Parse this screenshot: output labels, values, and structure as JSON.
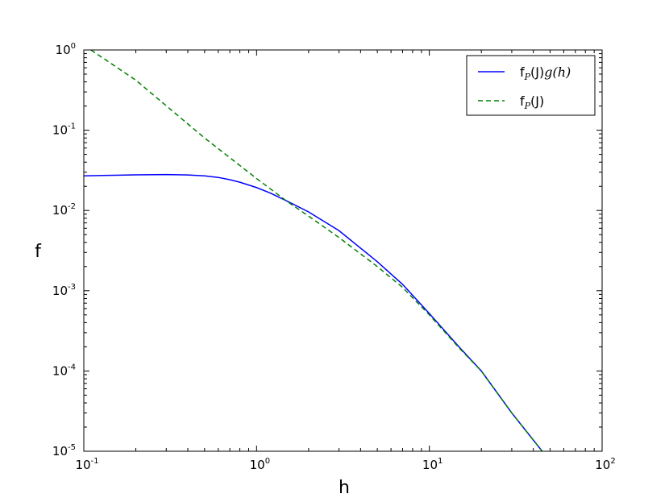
{
  "chart_data": {
    "type": "line",
    "xlabel": "h",
    "ylabel": "f",
    "xscale": "log",
    "yscale": "log",
    "xlim": [
      0.1,
      100
    ],
    "ylim": [
      1e-05,
      1
    ],
    "grid": false,
    "legend_position": "top-right",
    "x_ticks": [
      {
        "base": "10",
        "exp": "-1",
        "value": 0.1
      },
      {
        "base": "10",
        "exp": "0",
        "value": 1
      },
      {
        "base": "10",
        "exp": "1",
        "value": 10
      },
      {
        "base": "10",
        "exp": "2",
        "value": 100
      }
    ],
    "y_ticks": [
      {
        "base": "10",
        "exp": "0",
        "value": 1
      },
      {
        "base": "10",
        "exp": "-1",
        "value": 0.1
      },
      {
        "base": "10",
        "exp": "-2",
        "value": 0.01
      },
      {
        "base": "10",
        "exp": "-3",
        "value": 0.001
      },
      {
        "base": "10",
        "exp": "-4",
        "value": 0.0001
      },
      {
        "base": "10",
        "exp": "-5",
        "value": 1e-05
      }
    ],
    "series": [
      {
        "legend_parts": {
          "main": "f",
          "sub": "P",
          "paren": "(J)",
          "math": "g(h)"
        },
        "color": "#0000ff",
        "style": "solid",
        "x": [
          0.1,
          0.15,
          0.2,
          0.3,
          0.4,
          0.5,
          0.6,
          0.7,
          0.8,
          1.0,
          1.2,
          1.5,
          2,
          3,
          5,
          7,
          10,
          15,
          20,
          30,
          45
        ],
        "y": [
          0.027,
          0.0275,
          0.0278,
          0.028,
          0.0277,
          0.027,
          0.0258,
          0.0242,
          0.0225,
          0.0193,
          0.0165,
          0.0131,
          0.0096,
          0.0056,
          0.0023,
          0.0012,
          0.00052,
          0.000195,
          0.0001,
          3e-05,
          1e-05
        ]
      },
      {
        "legend_parts": {
          "main": "f",
          "sub": "P",
          "paren": "(J)",
          "math": ""
        },
        "color": "#008000",
        "style": "dashed",
        "x": [
          0.11,
          0.2,
          0.5,
          1,
          1.5,
          2,
          3,
          5,
          7,
          10,
          15,
          20,
          30,
          45
        ],
        "y": [
          1.0,
          0.42,
          0.08,
          0.025,
          0.013,
          0.0085,
          0.0046,
          0.002,
          0.0011,
          0.0005,
          0.00019,
          0.0001,
          3e-05,
          1e-05
        ]
      }
    ]
  }
}
